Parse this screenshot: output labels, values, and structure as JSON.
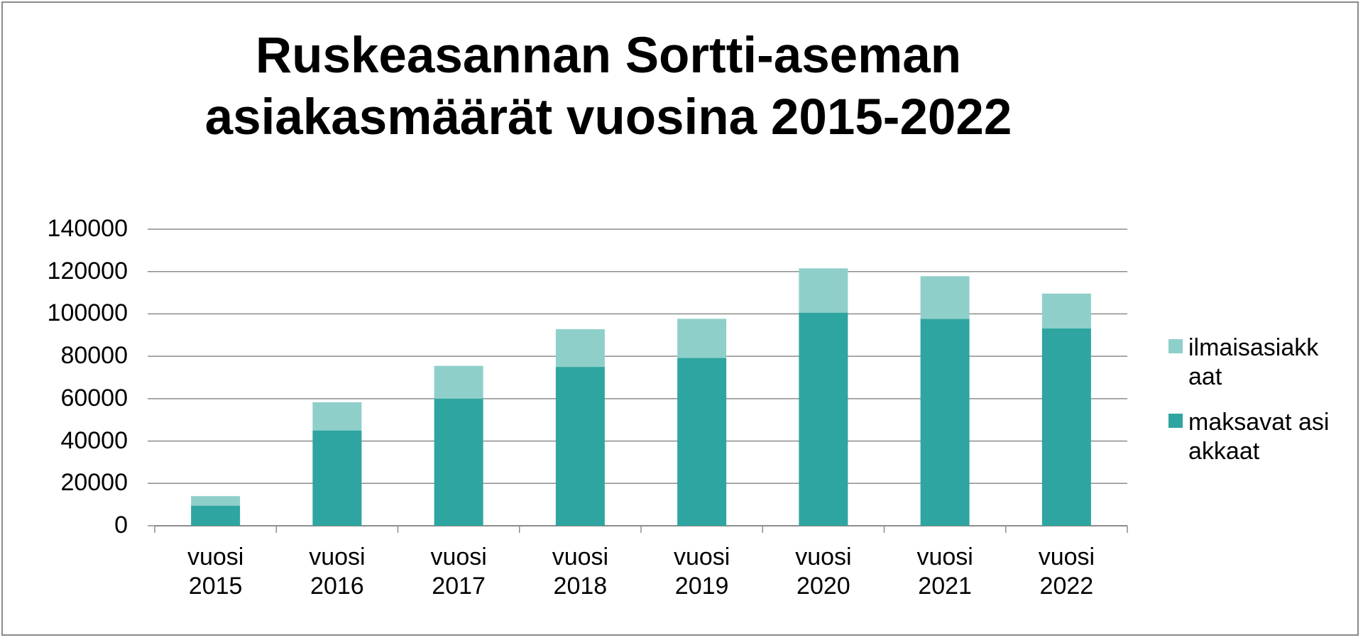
{
  "chart_data": {
    "type": "stacked_bar",
    "title": "Ruskeasannan Sortti-aseman asiakasmäärät vuosina 2015-2022",
    "categories": [
      "vuosi 2015",
      "vuosi 2016",
      "vuosi 2017",
      "vuosi 2018",
      "vuosi 2019",
      "vuosi 2020",
      "vuosi 2021",
      "vuosi 2022"
    ],
    "series": [
      {
        "name": "maksavat asiakkaat",
        "color": "#2ea5a0",
        "values": [
          9500,
          45000,
          60000,
          75000,
          79200,
          100600,
          97700,
          93200
        ]
      },
      {
        "name": "ilmaisasiakkaat",
        "color": "#8fcfca",
        "values": [
          4500,
          13300,
          15500,
          17800,
          18500,
          20900,
          20100,
          16400
        ]
      }
    ],
    "ylim": [
      0,
      140000
    ],
    "yticks": [
      0,
      20000,
      40000,
      60000,
      80000,
      100000,
      120000,
      140000
    ],
    "grid": true,
    "legend": "right"
  }
}
